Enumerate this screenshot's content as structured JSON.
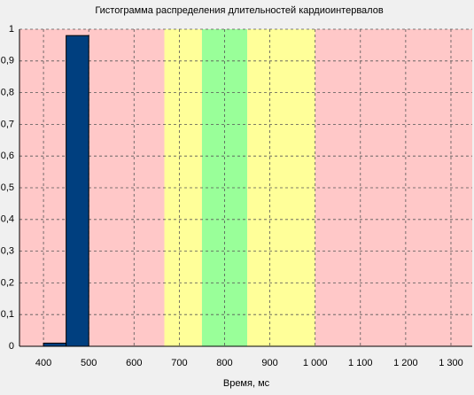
{
  "chart_data": {
    "type": "histogram",
    "title": "Гистограмма распределения длительностей кардиоинтервалов",
    "x_label": "Время, мс",
    "bins": [
      400,
      450,
      500,
      550,
      600,
      650,
      700,
      750,
      800,
      850,
      900,
      950,
      1000,
      1050,
      1100,
      1150,
      1200,
      1250,
      1300,
      1350
    ],
    "values": [
      0.01,
      0.98,
      0,
      0,
      0,
      0,
      0,
      0,
      0,
      0,
      0,
      0,
      0,
      0,
      0,
      0,
      0,
      0,
      0
    ],
    "color": "#003f7f",
    "zones": [
      {
        "from": 347,
        "to": 667,
        "color": "#ffc8c8"
      },
      {
        "from": 667,
        "to": 750,
        "color": "#ffff99"
      },
      {
        "from": 750,
        "to": 850,
        "color": "#99ff99"
      },
      {
        "from": 850,
        "to": 1000,
        "color": "#ffff99"
      },
      {
        "from": 1000,
        "to": 1347,
        "color": "#ffc8c8"
      }
    ],
    "xlim": [
      347,
      1347
    ],
    "ylim": [
      0,
      1
    ],
    "xticks": [
      400,
      500,
      600,
      700,
      800,
      900,
      {
        "value": 1000,
        "label": "1 000"
      },
      {
        "value": 1100,
        "label": "1 100"
      },
      {
        "value": 1200,
        "label": "1 200"
      },
      {
        "value": 1300,
        "label": "1 300"
      }
    ],
    "yticks": [
      0,
      {
        "value": 0.1,
        "label": "0,1"
      },
      {
        "value": 0.2,
        "label": "0,2"
      },
      {
        "value": 0.3,
        "label": "0,3"
      },
      {
        "value": 0.4,
        "label": "0,4"
      },
      {
        "value": 0.5,
        "label": "0,5"
      },
      {
        "value": 0.6,
        "label": "0,6"
      },
      {
        "value": 0.7,
        "label": "0,7"
      },
      {
        "value": 0.8,
        "label": "0,8"
      },
      {
        "value": 0.9,
        "label": "0,9"
      },
      1
    ],
    "grid": true
  }
}
